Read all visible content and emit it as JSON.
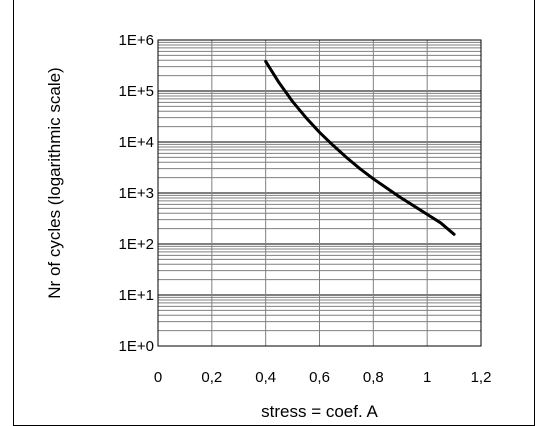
{
  "chart_data": {
    "type": "line",
    "title": "",
    "xlabel": "stress = coef. A",
    "ylabel": "Nr of cycles (logarithmic scale)",
    "xlim": [
      0,
      1.2
    ],
    "ylim": [
      1,
      1000000
    ],
    "y_scale": "log",
    "grid": true,
    "x_ticks": [
      "0",
      "0,2",
      "0,4",
      "0,6",
      "0,8",
      "1",
      "1,2"
    ],
    "y_ticks": [
      "1E+0",
      "1E+1",
      "1E+2",
      "1E+3",
      "1E+4",
      "1E+5",
      "1E+6"
    ],
    "series": [
      {
        "x": [
          0.4,
          0.45,
          0.5,
          0.55,
          0.6,
          0.65,
          0.7,
          0.75,
          0.8,
          0.85,
          0.9,
          0.95,
          1.0,
          1.05,
          1.1
        ],
        "y": [
          380000,
          145000,
          62000,
          30000,
          15500,
          8600,
          5000,
          3000,
          1900,
          1250,
          820,
          560,
          380,
          260,
          155
        ],
        "color": "#000000"
      }
    ]
  }
}
